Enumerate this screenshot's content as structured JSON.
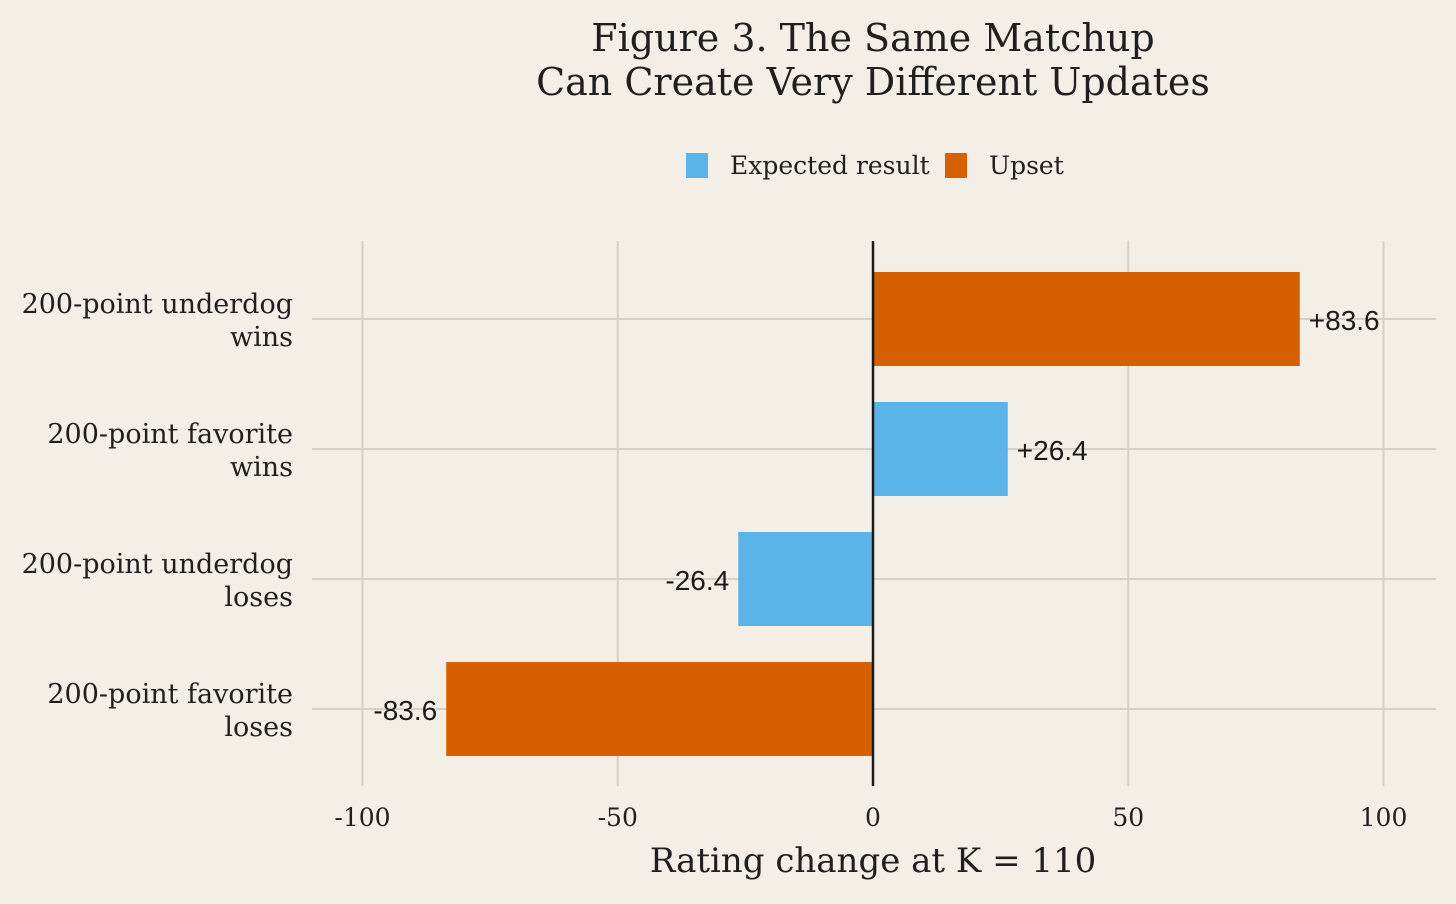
{
  "chart_data": {
    "type": "bar",
    "orientation": "horizontal",
    "title": [
      "Figure 3. The Same Matchup",
      "Can Create Very Different Updates"
    ],
    "xlabel": "Rating change at K = 110",
    "ylabel": "",
    "xlim": [
      -100,
      100
    ],
    "xticks": [
      -100,
      -50,
      0,
      50,
      100
    ],
    "xtick_labels": [
      "-100",
      "-50",
      "0",
      "50",
      "100"
    ],
    "grid": true,
    "legend_position": "top-center",
    "legend": [
      {
        "key": "expected",
        "label": "Expected result",
        "color": "#5ab4e8"
      },
      {
        "key": "upset",
        "label": "Upset",
        "color": "#d65f00"
      }
    ],
    "bars": [
      {
        "label": [
          "200-point underdog",
          "wins"
        ],
        "value": 83.6,
        "value_label": "+83.6",
        "series": "upset"
      },
      {
        "label": [
          "200-point favorite",
          "wins"
        ],
        "value": 26.4,
        "value_label": "+26.4",
        "series": "expected"
      },
      {
        "label": [
          "200-point underdog",
          "loses"
        ],
        "value": -26.4,
        "value_label": "-26.4",
        "series": "expected"
      },
      {
        "label": [
          "200-point favorite",
          "loses"
        ],
        "value": -83.6,
        "value_label": "-83.6",
        "series": "upset"
      }
    ]
  },
  "colors": {
    "background": "#f3efe7",
    "grid": "#d6d1c2",
    "zero_line": "#1a1a1a",
    "text": "#1f1f1f"
  }
}
